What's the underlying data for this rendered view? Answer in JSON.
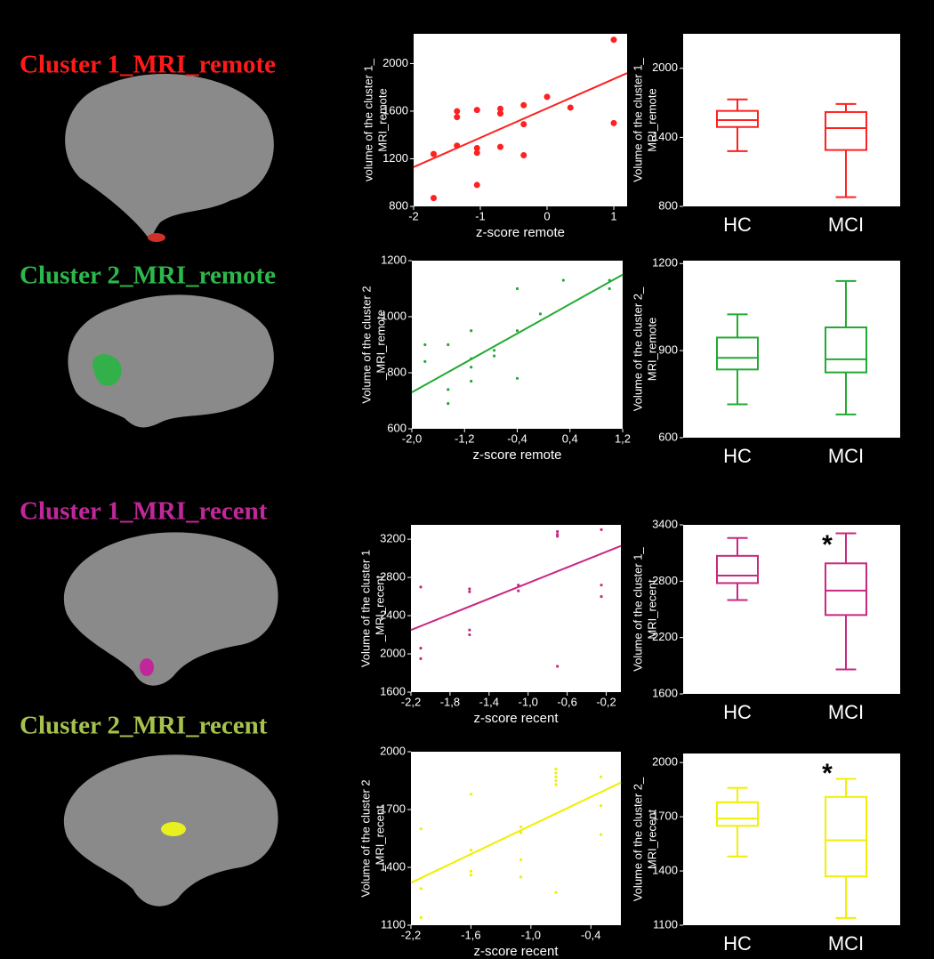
{
  "chart_data": [
    {
      "type": "scatter",
      "title": "Cluster 1_MRI_remote",
      "title_color": "#ff1a1a",
      "color": "#ff2020",
      "xlabel": "z-score remote",
      "ylabel": [
        "volume of the cluster 1_",
        "MRI_remote"
      ],
      "x": [
        -1.7,
        -1.7,
        -1.35,
        -1.35,
        -1.35,
        -1.05,
        -1.05,
        -1.05,
        -1.05,
        -0.7,
        -0.7,
        -0.7,
        -0.35,
        -0.35,
        -0.35,
        0,
        0.35,
        1,
        1
      ],
      "y": [
        1240,
        870,
        1600,
        1550,
        1310,
        1610,
        1290,
        1250,
        980,
        1620,
        1580,
        1300,
        1650,
        1490,
        1230,
        1720,
        1630,
        2200,
        1500
      ],
      "trend_x": [
        -2,
        1.2
      ],
      "trend_y": [
        1130,
        1920
      ],
      "xlim": [
        -2,
        1.2
      ],
      "ylim": [
        800,
        2250
      ],
      "xticks": [
        -2,
        -1,
        0,
        1
      ],
      "yticks": [
        800,
        1200,
        1600,
        2000
      ]
    },
    {
      "type": "box",
      "color": "#ff2020",
      "ylabel": [
        "Volume of the cluster 1_",
        "MRI_remote"
      ],
      "categories": [
        "HC",
        "MCI"
      ],
      "boxes": [
        {
          "min": 1280,
          "q1": 1490,
          "median": 1550,
          "q3": 1630,
          "max": 1730
        },
        {
          "min": 880,
          "q1": 1290,
          "median": 1480,
          "q3": 1620,
          "max": 1690
        }
      ],
      "ylim": [
        800,
        2300
      ],
      "yticks": [
        800,
        1400,
        2000
      ]
    },
    {
      "type": "scatter",
      "title": "Cluster 2_MRI_remote",
      "title_color": "#2db84c",
      "color": "#22aa33",
      "xlabel": "z-score remote",
      "ylabel": [
        "Volume of the cluster 2",
        "_MRI_remote"
      ],
      "x": [
        -1.8,
        -1.8,
        -1.45,
        -1.45,
        -1.45,
        -1.1,
        -1.1,
        -1.1,
        -1.1,
        -0.75,
        -0.75,
        -0.4,
        -0.4,
        -0.4,
        -0.05,
        0.3,
        1,
        1
      ],
      "y": [
        900,
        840,
        900,
        740,
        690,
        950,
        850,
        820,
        770,
        880,
        860,
        1100,
        950,
        780,
        1010,
        1130,
        1130,
        1100
      ],
      "trend_x": [
        -2,
        1.2
      ],
      "trend_y": [
        730,
        1150
      ],
      "xlim": [
        -2,
        1.2
      ],
      "ylim": [
        600,
        1200
      ],
      "xticks": [
        {
          "value": -2,
          "label": "-2,0"
        },
        {
          "value": -1.2,
          "label": "-1,2"
        },
        {
          "value": -0.4,
          "label": "-0,4"
        },
        {
          "value": 0.4,
          "label": "0,4"
        },
        {
          "value": 1.2,
          "label": "1,2"
        }
      ],
      "yticks": [
        600,
        800,
        1000,
        1200
      ]
    },
    {
      "type": "box",
      "color": "#22aa33",
      "ylabel": [
        "Volume of the cluster 2_",
        "MRI_remote"
      ],
      "categories": [
        "HC",
        "MCI"
      ],
      "boxes": [
        {
          "min": 715,
          "q1": 835,
          "median": 875,
          "q3": 945,
          "max": 1025
        },
        {
          "min": 680,
          "q1": 825,
          "median": 870,
          "q3": 980,
          "max": 1140
        }
      ],
      "ylim": [
        600,
        1210
      ],
      "yticks": [
        600,
        900,
        1200
      ]
    },
    {
      "type": "scatter",
      "title": "Cluster 1_MRI_recent",
      "title_color": "#c0289a",
      "color": "#c8287f",
      "xlabel": "z-score recent",
      "ylabel": [
        "Volume of the cluster 1",
        "_MRI_recent"
      ],
      "x": [
        -2.1,
        -2.1,
        -2.1,
        -1.6,
        -1.6,
        -1.6,
        -1.6,
        -1.1,
        -1.1,
        -0.7,
        -0.7,
        -0.7,
        -0.7,
        -0.25,
        -0.25,
        -0.25
      ],
      "y": [
        2700,
        2060,
        1950,
        2680,
        2650,
        2250,
        2200,
        2720,
        2660,
        3280,
        3250,
        3230,
        1870,
        3300,
        2720,
        2600
      ],
      "trend_x": [
        -2.2,
        -0.05
      ],
      "trend_y": [
        2250,
        3130
      ],
      "xlim": [
        -2.2,
        -0.05
      ],
      "ylim": [
        1600,
        3350
      ],
      "xticks": [
        {
          "value": -2.2,
          "label": "-2,2"
        },
        {
          "value": -1.8,
          "label": "-1,8"
        },
        {
          "value": -1.4,
          "label": "-1,4"
        },
        {
          "value": -1,
          "label": "-1,0"
        },
        {
          "value": -0.6,
          "label": "-0,6"
        },
        {
          "value": -0.2,
          "label": "-0,2"
        }
      ],
      "yticks": [
        1600,
        2000,
        2400,
        2800,
        3200
      ]
    },
    {
      "type": "box",
      "color": "#c8287f",
      "ylabel": [
        "Volume of the cluster 1_",
        "MRI_recent"
      ],
      "annotation": "*",
      "categories": [
        "HC",
        "MCI"
      ],
      "boxes": [
        {
          "min": 2600,
          "q1": 2780,
          "median": 2860,
          "q3": 3070,
          "max": 3260
        },
        {
          "min": 1860,
          "q1": 2440,
          "median": 2700,
          "q3": 2990,
          "max": 3310
        }
      ],
      "ylim": [
        1600,
        3400
      ],
      "yticks": [
        1600,
        2200,
        2800,
        3400
      ]
    },
    {
      "type": "scatter",
      "title": "Cluster 2_MRI_recent",
      "title_color": "#a6c24e",
      "color": "#f0f000",
      "xlabel": "z-score recent",
      "ylabel": [
        "Volume of the cluster 2",
        "_MRI_recent"
      ],
      "x": [
        -2.1,
        -2.1,
        -2.1,
        -1.6,
        -1.6,
        -1.6,
        -1.6,
        -1.1,
        -1.1,
        -1.1,
        -1.1,
        -0.75,
        -0.75,
        -0.75,
        -0.75,
        -0.75,
        -0.75,
        -0.3,
        -0.3,
        -0.3
      ],
      "y": [
        1600,
        1290,
        1140,
        1780,
        1490,
        1380,
        1360,
        1610,
        1580,
        1440,
        1350,
        1910,
        1890,
        1870,
        1850,
        1830,
        1270,
        1870,
        1720,
        1570
      ],
      "trend_x": [
        -2.2,
        -0.1
      ],
      "trend_y": [
        1320,
        1840
      ],
      "xlim": [
        -2.2,
        -0.1
      ],
      "ylim": [
        1100,
        2000
      ],
      "xticks": [
        {
          "value": -2.2,
          "label": "-2,2"
        },
        {
          "value": -1.6,
          "label": "-1,6"
        },
        {
          "value": -1,
          "label": "-1,0"
        },
        {
          "value": -0.4,
          "label": "-0,4"
        }
      ],
      "yticks": [
        1100,
        1400,
        1700,
        2000
      ]
    },
    {
      "type": "box",
      "color": "#f0f000",
      "ylabel": [
        "Volume of the cluster 2_",
        "MRI_recent"
      ],
      "annotation": "*",
      "categories": [
        "HC",
        "MCI"
      ],
      "boxes": [
        {
          "min": 1480,
          "q1": 1650,
          "median": 1690,
          "q3": 1780,
          "max": 1860
        },
        {
          "min": 1140,
          "q1": 1370,
          "median": 1570,
          "q3": 1810,
          "max": 1910
        }
      ],
      "ylim": [
        1100,
        2050
      ],
      "yticks": [
        1100,
        1400,
        1700,
        2000
      ]
    }
  ]
}
